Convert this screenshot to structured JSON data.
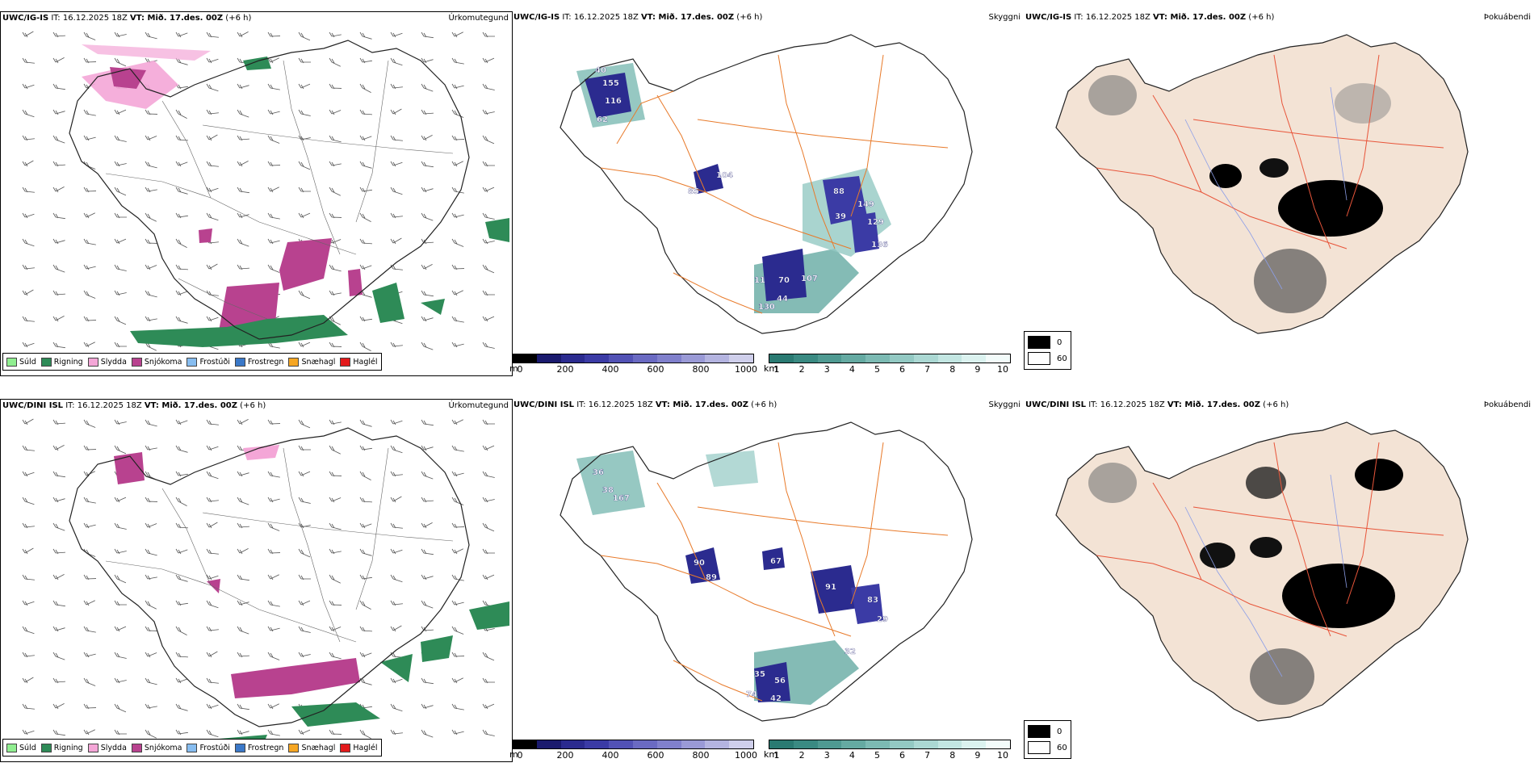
{
  "rows": [
    {
      "model": "UWC/IG-IS",
      "it": " IT: 16.12.2025 18Z ",
      "vt_label": "VT:",
      "vt_value": " Mið. 17.des. 00Z",
      "lead": " (+6 h)",
      "panel_titles": [
        "Úrkomutegund",
        "Skyggni",
        "Þokuábendi"
      ],
      "precip_labels": [
        85,
        104,
        88,
        149,
        39,
        129,
        136,
        70,
        107,
        44,
        130,
        11,
        155,
        116,
        62,
        40
      ],
      "precip_label_color": "#ffffff"
    },
    {
      "model": "UWC/DINI ISL",
      "it": " IT: 16.12.2025 18Z ",
      "vt_label": "VT:",
      "vt_value": " Mið. 17.des. 00Z",
      "lead": " (+6 h)",
      "panel_titles": [
        "Úrkomutegund",
        "Skyggni",
        "Þokuábendi"
      ],
      "precip_labels": [
        90,
        89,
        67,
        91,
        83,
        29,
        32,
        56,
        42,
        74,
        35,
        36,
        38,
        167
      ],
      "precip_label_color": "#ffffff"
    }
  ],
  "precip_legend": [
    {
      "label": "Súld",
      "color": "#90ee90"
    },
    {
      "label": "Rigning",
      "color": "#2e8b57"
    },
    {
      "label": "Slydda",
      "color": "#f4a6d7"
    },
    {
      "label": "Snjókoma",
      "color": "#b8428f"
    },
    {
      "label": "Frostúði",
      "color": "#87bdf0"
    },
    {
      "label": "Frostregn",
      "color": "#3a78c8"
    },
    {
      "label": "Snæhagl",
      "color": "#f5a623"
    },
    {
      "label": "Haglél",
      "color": "#e31a1c"
    }
  ],
  "ceiling_bar": {
    "unit": "m",
    "ticks": [
      "0",
      "200",
      "400",
      "600",
      "800",
      "1000"
    ],
    "colors": [
      "#000000",
      "#1a1a6e",
      "#2b2b8f",
      "#3b3ba5",
      "#5252b5",
      "#6a6ac2",
      "#8080cc",
      "#9a9ad6",
      "#b4b4e0",
      "#cfcfeb"
    ]
  },
  "vis_bar": {
    "unit": "km",
    "ticks": [
      "1",
      "2",
      "3",
      "4",
      "5",
      "6",
      "7",
      "8",
      "9",
      "10"
    ],
    "colors": [
      "#2a7a72",
      "#3a8a82",
      "#4f9a92",
      "#65aaa2",
      "#7cbab3",
      "#93c9c3",
      "#abd8d3",
      "#c3e6e2",
      "#dbf2ef",
      "#f2fbfa"
    ]
  },
  "fog_legend": {
    "items": [
      {
        "label": "0",
        "color": "#000000"
      },
      {
        "label": "60",
        "color": "#ffffff"
      }
    ]
  },
  "colors": {
    "land_fog": "#f3e3d5",
    "roads": "#e87a2a",
    "roads_fog": "#e8553a",
    "rivers": "#8c9ee8",
    "coast": "#222222"
  }
}
